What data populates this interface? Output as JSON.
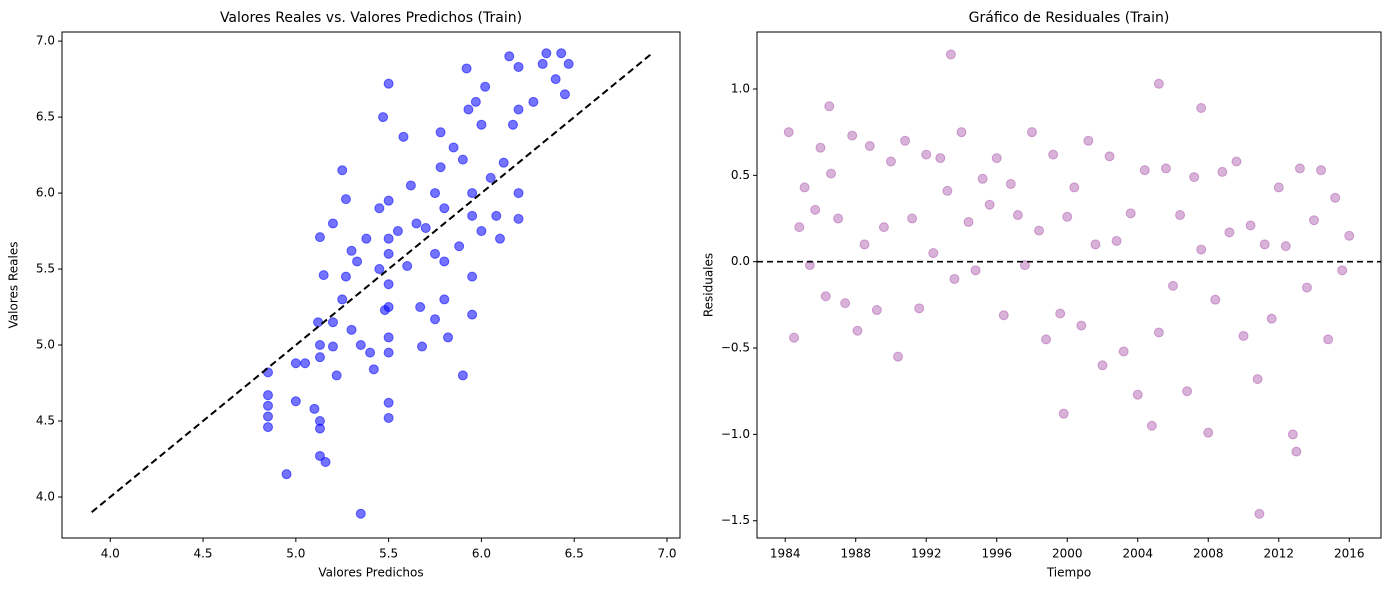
{
  "chart_data": [
    {
      "type": "scatter",
      "title": "Valores Reales vs. Valores Predichos (Train)",
      "x_label": "Valores Predichos",
      "y_label": "Valores Reales",
      "color": "#0000ff",
      "alpha": 0.55,
      "xlim": [
        3.74,
        7.07
      ],
      "ylim": [
        3.73,
        7.06
      ],
      "xticks": [
        {
          "value": 4,
          "label": "4.0"
        },
        4.5,
        {
          "value": 5,
          "label": "5.0"
        },
        5.5,
        {
          "value": 6,
          "label": "6.0"
        },
        6.5,
        {
          "value": 7,
          "label": "7.0"
        }
      ],
      "yticks": [
        {
          "value": 4,
          "label": "4.0"
        },
        4.5,
        {
          "value": 5,
          "label": "5.0"
        },
        5.5,
        {
          "value": 6,
          "label": "6.0"
        },
        6.5,
        {
          "value": 7,
          "label": "7.0"
        }
      ],
      "reference_line": {
        "x": [
          3.9,
          6.92
        ],
        "y": [
          3.9,
          6.92
        ]
      },
      "x": [
        4.85,
        4.85,
        4.85,
        4.85,
        4.85,
        4.95,
        5.0,
        5.0,
        5.05,
        5.1,
        5.12,
        5.13,
        5.13,
        5.13,
        5.16,
        5.15,
        5.13,
        5.13,
        5.13,
        5.2,
        5.2,
        5.2,
        5.22,
        5.25,
        5.25,
        5.27,
        5.27,
        5.3,
        5.3,
        5.33,
        5.35,
        5.35,
        5.38,
        5.4,
        5.42,
        5.45,
        5.45,
        5.47,
        5.48,
        5.5,
        5.5,
        5.5,
        5.5,
        5.5,
        5.5,
        5.5,
        5.5,
        5.5,
        5.5,
        5.55,
        5.58,
        5.6,
        5.62,
        5.65,
        5.67,
        5.68,
        5.7,
        5.75,
        5.75,
        5.75,
        5.78,
        5.78,
        5.8,
        5.8,
        5.8,
        5.82,
        5.85,
        5.88,
        5.9,
        5.9,
        5.92,
        5.93,
        5.95,
        5.95,
        5.95,
        5.95,
        5.97,
        6.0,
        6.0,
        6.02,
        6.05,
        6.08,
        6.1,
        6.12,
        6.15,
        6.17,
        6.2,
        6.2,
        6.2,
        6.2,
        6.28,
        6.33,
        6.35,
        6.4,
        6.43,
        6.45,
        6.47
      ],
      "values": [
        4.82,
        4.67,
        4.6,
        4.53,
        4.46,
        4.15,
        4.88,
        4.63,
        4.88,
        4.58,
        5.15,
        4.5,
        4.45,
        4.27,
        4.23,
        5.46,
        5.71,
        5.0,
        4.92,
        5.8,
        5.15,
        4.99,
        4.8,
        5.3,
        6.15,
        5.96,
        5.45,
        5.62,
        5.1,
        5.55,
        5.0,
        3.89,
        5.7,
        4.95,
        4.84,
        5.9,
        5.5,
        6.5,
        5.23,
        6.72,
        5.95,
        5.7,
        5.6,
        5.4,
        5.25,
        5.05,
        4.95,
        4.62,
        4.52,
        5.75,
        6.37,
        5.52,
        6.05,
        5.8,
        5.25,
        4.99,
        5.77,
        6.0,
        5.6,
        5.17,
        6.4,
        6.17,
        5.9,
        5.55,
        5.3,
        5.05,
        6.3,
        5.65,
        6.22,
        4.8,
        6.82,
        6.55,
        6.0,
        5.85,
        5.45,
        5.2,
        6.6,
        6.45,
        5.75,
        6.7,
        6.1,
        5.85,
        5.7,
        6.2,
        6.9,
        6.45,
        6.83,
        6.55,
        6.0,
        5.83,
        6.6,
        6.85,
        6.92,
        6.75,
        6.92,
        6.65,
        6.85
      ]
    },
    {
      "type": "scatter",
      "title": "Gráfico de Residuales (Train)",
      "x_label": "Tiempo",
      "y_label": "Residuales",
      "color": "#800080",
      "alpha": 0.3,
      "xlim": [
        1982.4,
        2017.8
      ],
      "ylim": [
        -1.6,
        1.33
      ],
      "xticks": [
        1984,
        1988,
        1992,
        1996,
        2000,
        2004,
        2008,
        2012,
        2016
      ],
      "yticks": [
        {
          "value": -1.5,
          "label": "−1.5"
        },
        {
          "value": -1,
          "label": "−1.0"
        },
        {
          "value": -0.5,
          "label": "−0.5"
        },
        {
          "value": 0,
          "label": "0.0"
        },
        0.5,
        {
          "value": 1,
          "label": "1.0"
        }
      ],
      "hline": 0,
      "x": [
        1984.2,
        1984.5,
        1984.8,
        1985.1,
        1985.4,
        1985.7,
        1986.0,
        1986.3,
        1986.6,
        1987.0,
        1987.4,
        1987.8,
        1988.1,
        1988.5,
        1988.8,
        1989.2,
        1989.6,
        1990.0,
        1990.4,
        1990.8,
        1991.2,
        1991.6,
        1992.0,
        1992.4,
        1992.8,
        1993.2,
        1993.6,
        1994.0,
        1994.4,
        1994.8,
        1995.2,
        1995.6,
        1996.0,
        1996.4,
        1996.8,
        1997.2,
        1997.6,
        1998.0,
        1998.4,
        1998.8,
        1999.2,
        1999.6,
        2000.0,
        2000.4,
        2000.8,
        2001.2,
        2001.6,
        2002.0,
        2002.4,
        2002.8,
        2003.2,
        2003.6,
        2004.0,
        2004.4,
        2004.8,
        2005.2,
        2005.6,
        2006.0,
        2006.4,
        2006.8,
        2007.2,
        2007.6,
        2008.0,
        2008.4,
        2008.8,
        2009.2,
        2009.6,
        2010.0,
        2010.4,
        2010.8,
        2011.2,
        2011.6,
        2012.0,
        2012.4,
        2012.8,
        2013.2,
        2013.6,
        2014.0,
        2014.4,
        2014.8,
        2015.2,
        2015.6,
        2016.0,
        1993.4,
        2005.2,
        2010.9,
        2013.0,
        1986.5,
        2007.6,
        1999.8
      ],
      "values": [
        0.75,
        -0.44,
        0.2,
        0.43,
        -0.02,
        0.3,
        0.66,
        -0.2,
        0.51,
        0.25,
        -0.24,
        0.73,
        -0.4,
        0.1,
        0.67,
        -0.28,
        0.2,
        0.58,
        -0.55,
        0.7,
        0.25,
        -0.27,
        0.62,
        0.05,
        0.6,
        0.41,
        -0.1,
        0.75,
        0.23,
        -0.05,
        0.48,
        0.33,
        0.6,
        -0.31,
        0.45,
        0.27,
        -0.02,
        0.75,
        0.18,
        -0.45,
        0.62,
        -0.3,
        0.26,
        0.43,
        -0.37,
        0.7,
        0.1,
        -0.6,
        0.61,
        0.12,
        -0.52,
        0.28,
        -0.77,
        0.53,
        -0.95,
        -0.41,
        0.54,
        -0.14,
        0.27,
        -0.75,
        0.49,
        0.07,
        -0.99,
        -0.22,
        0.52,
        0.17,
        0.58,
        -0.43,
        0.21,
        -0.68,
        0.1,
        -0.33,
        0.43,
        0.09,
        -1.0,
        0.54,
        -0.15,
        0.24,
        0.53,
        -0.45,
        0.37,
        -0.05,
        0.15,
        1.2,
        1.03,
        -1.46,
        -1.1,
        0.9,
        0.89,
        -0.88
      ]
    }
  ]
}
